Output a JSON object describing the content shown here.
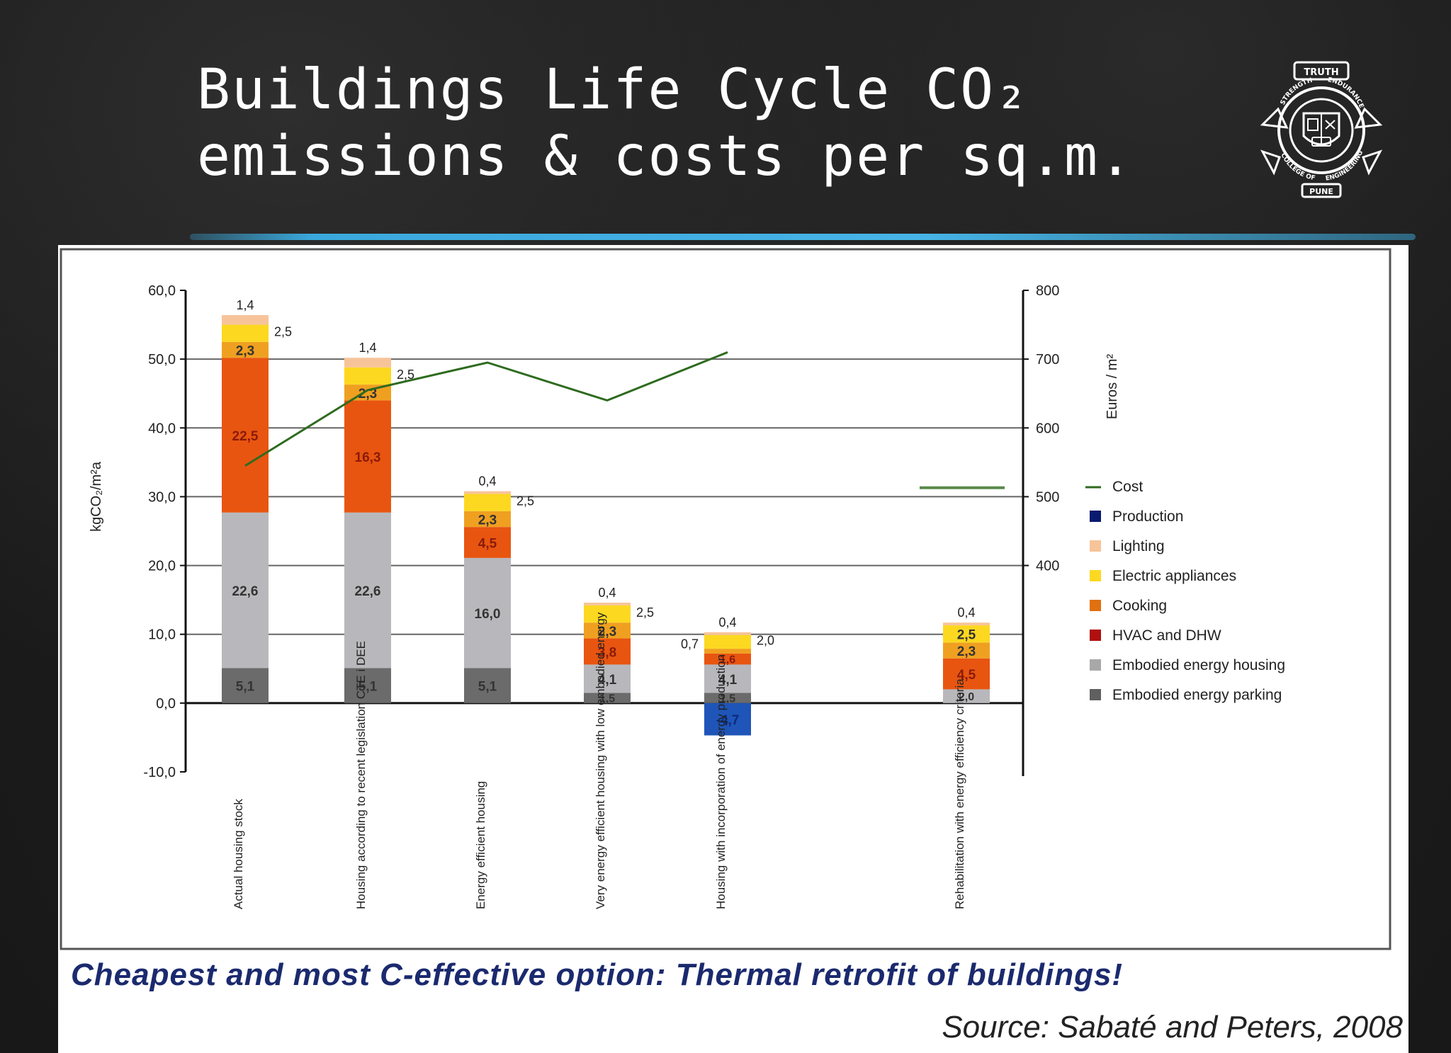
{
  "slide": {
    "title_line1": "Buildings Life Cycle CO₂",
    "title_line2": "emissions & costs per sq.m.",
    "caption": "Cheapest and most C-effective option: Thermal retrofit of buildings!",
    "source": "Source: Sabaté and Peters, 2008"
  },
  "logo": {
    "icon": "college-crest-icon",
    "text_top": "TRUTH",
    "text_left": "STRENGTH",
    "text_right": "ENDURANCE",
    "text_bottom_left": "COLLEGE OF",
    "text_bottom_right": "ENGINEERING",
    "text_bottom": "PUNE"
  },
  "chart_data": {
    "type": "bar",
    "stacked": true,
    "ylabel": "kgCO₂/m²a",
    "ylabel_right": "Euros / m²",
    "ylim": [
      -10,
      60
    ],
    "y_ticks": [
      "-10,0",
      "0,0",
      "10,0",
      "20,0",
      "30,0",
      "40,0",
      "50,0",
      "60,0"
    ],
    "y2lim": [
      400,
      800
    ],
    "y2_ticks": [
      "400",
      "500",
      "600",
      "700",
      "800"
    ],
    "grid": true,
    "legend_position": "right",
    "categories": [
      "Actual housing stock",
      "Housing according to recent legislation CTE i DEE",
      "Energy efficient housing",
      "Very energy efficient housing with low embodied energy",
      "Housing with incorporation of energy production",
      "Rehabilitation with energy efficiency criteria"
    ],
    "series": [
      {
        "name": "Embodied energy parking",
        "color": "#6b6b6b",
        "values": [
          5.1,
          5.1,
          5.1,
          1.5,
          1.5,
          0
        ],
        "labels": [
          "5,1",
          "5,1",
          "5,1",
          "1,5",
          "1,5",
          ""
        ]
      },
      {
        "name": "Embodied energy housing",
        "color": "#b8b8bc",
        "values": [
          22.6,
          22.6,
          16.0,
          4.1,
          4.1,
          2.0
        ],
        "labels": [
          "22,6",
          "22,6",
          "16,0",
          "4,1",
          "4,1",
          "2,0"
        ]
      },
      {
        "name": "HVAC and DHW",
        "color": "#e85510",
        "values": [
          22.5,
          16.3,
          4.5,
          3.8,
          1.6,
          4.5
        ],
        "labels": [
          "22,5",
          "16,3",
          "4,5",
          "3,8",
          "1,6",
          "4,5"
        ]
      },
      {
        "name": "Cooking",
        "color": "#f0a020",
        "values": [
          2.3,
          2.3,
          2.3,
          2.3,
          0.7,
          2.3
        ],
        "labels": [
          "2,3",
          "2,3",
          "2,3",
          "2,3",
          "0,7",
          "2,3"
        ]
      },
      {
        "name": "Electric appliances",
        "color": "#fcd820",
        "values": [
          2.5,
          2.5,
          2.5,
          2.5,
          2.0,
          2.5
        ],
        "labels": [
          "2,5",
          "2,5",
          "2,5",
          "2,5",
          "2,0",
          "2,5"
        ]
      },
      {
        "name": "Lighting",
        "color": "#f7c49a",
        "values": [
          1.4,
          1.4,
          0.4,
          0.4,
          0.4,
          0.4
        ],
        "labels": [
          "1,4",
          "1,4",
          "0,4",
          "0,4",
          "0,4",
          "0,4"
        ]
      },
      {
        "name": "Production",
        "color": "#1f55b8",
        "values": [
          0,
          0,
          0,
          0,
          -4.7,
          0
        ],
        "labels": [
          "",
          "",
          "",
          "",
          "-4,7",
          ""
        ]
      }
    ],
    "cost_series": {
      "name": "Cost",
      "color": "#2e6b1f",
      "values": [
        545,
        655,
        695,
        640,
        710,
        null
      ]
    },
    "legend": [
      {
        "name": "Cost",
        "color": "#2e6b1f",
        "kind": "line"
      },
      {
        "name": "Production",
        "color": "#0a1a6e",
        "kind": "box"
      },
      {
        "name": "Lighting",
        "color": "#f7c49a",
        "kind": "box"
      },
      {
        "name": "Electric appliances",
        "color": "#fcd820",
        "kind": "box"
      },
      {
        "name": "Cooking",
        "color": "#e07010",
        "kind": "box"
      },
      {
        "name": "HVAC and DHW",
        "color": "#b01010",
        "kind": "box"
      },
      {
        "name": "Embodied energy housing",
        "color": "#a8a8a8",
        "kind": "box"
      },
      {
        "name": "Embodied energy parking",
        "color": "#606060",
        "kind": "box"
      }
    ]
  }
}
